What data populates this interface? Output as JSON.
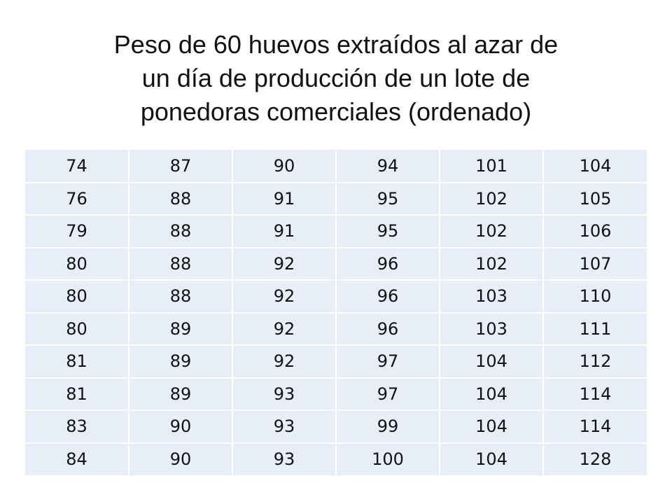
{
  "title": {
    "lines": [
      "Peso de 60 huevos extraídos al azar de",
      "un día de producción de un lote de",
      "ponedoras comerciales (ordenado)"
    ]
  },
  "table": {
    "rows": [
      [
        "74",
        "87",
        "90",
        "94",
        "101",
        "104"
      ],
      [
        "76",
        "88",
        "91",
        "95",
        "102",
        "105"
      ],
      [
        "79",
        "88",
        "91",
        "95",
        "102",
        "106"
      ],
      [
        "80",
        "88",
        "92",
        "96",
        "102",
        "107"
      ],
      [
        "80",
        "88",
        "92",
        "96",
        "103",
        "110"
      ],
      [
        "80",
        "89",
        "92",
        "96",
        "103",
        "111"
      ],
      [
        "81",
        "89",
        "92",
        "97",
        "104",
        "112"
      ],
      [
        "81",
        "89",
        "93",
        "97",
        "104",
        "114"
      ],
      [
        "83",
        "90",
        "93",
        "99",
        "104",
        "114"
      ],
      [
        "84",
        "90",
        "93",
        "100",
        "104",
        "128"
      ]
    ]
  },
  "colors": {
    "cell_background": "#e8eef8",
    "grid_lines": "#ffffff",
    "text": "#111111"
  }
}
